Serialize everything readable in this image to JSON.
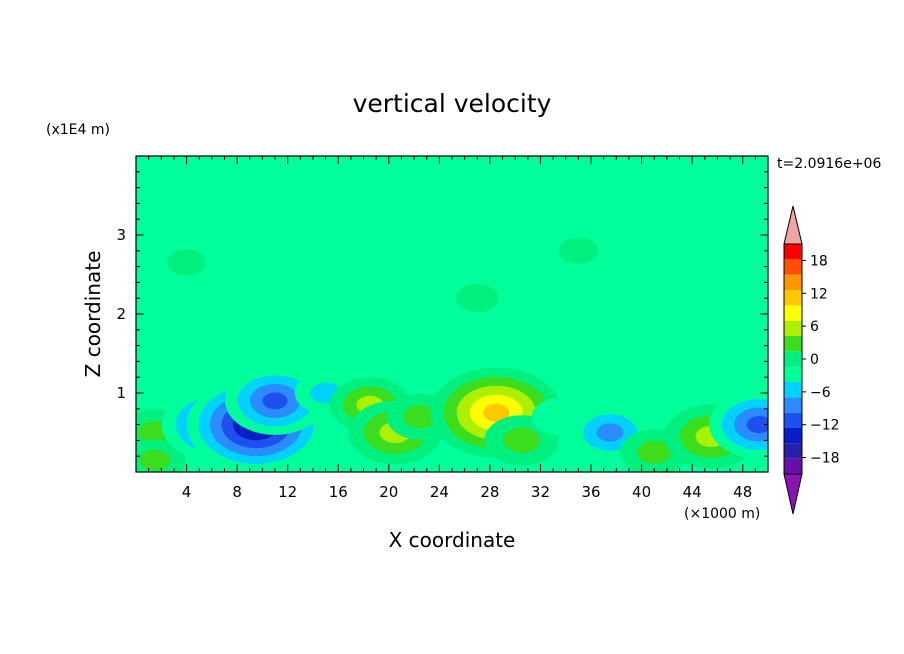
{
  "chart_data": {
    "type": "heatmap",
    "title": "vertical velocity",
    "xlabel": "X coordinate",
    "ylabel": "Z coordinate",
    "x_unit_label": "(×1000 m)",
    "y_unit_label": "(x1E4 m)",
    "time_label": "t=2.0916e+06",
    "xlim": [
      0,
      50
    ],
    "ylim": [
      0,
      4
    ],
    "x_ticks": [
      4,
      8,
      12,
      16,
      20,
      24,
      28,
      32,
      36,
      40,
      44,
      48
    ],
    "y_ticks": [
      1,
      2,
      3
    ],
    "colorbar": {
      "tick_values": [
        -18,
        -12,
        -6,
        0,
        6,
        12,
        18
      ],
      "tick_labels": [
        "−18",
        "−12",
        "−6",
        "0",
        "6",
        "12",
        "18"
      ],
      "levels": [
        -21,
        -18,
        -15,
        -12,
        -9,
        -6,
        -3,
        0,
        3,
        6,
        9,
        12,
        15,
        18,
        21
      ],
      "colors": [
        "#6a0dad",
        "#2a1fa8",
        "#0a1ec8",
        "#1e50f0",
        "#2a8cff",
        "#00d2ff",
        "#00ff9a",
        "#00f080",
        "#3cdc1e",
        "#aaf000",
        "#ffff00",
        "#ffc800",
        "#ff9600",
        "#ff5000",
        "#ff0000"
      ],
      "under_color": "#8c14b4",
      "over_color": "#f4a3a3"
    },
    "features": [
      {
        "x": 1.5,
        "z": 0.5,
        "value": 5
      },
      {
        "x": 1.5,
        "z": 0.15,
        "value": 4
      },
      {
        "x": 6.5,
        "z": 0.6,
        "value": -12
      },
      {
        "x": 9.5,
        "z": 0.6,
        "value": -16
      },
      {
        "x": 11,
        "z": 0.9,
        "value": -10
      },
      {
        "x": 15,
        "z": 1.0,
        "value": -4
      },
      {
        "x": 18.5,
        "z": 0.85,
        "value": 7
      },
      {
        "x": 20.5,
        "z": 0.5,
        "value": 9
      },
      {
        "x": 22.5,
        "z": 0.7,
        "value": 5
      },
      {
        "x": 28.5,
        "z": 0.75,
        "value": 15
      },
      {
        "x": 30.5,
        "z": 0.4,
        "value": 6
      },
      {
        "x": 33.5,
        "z": 0.7,
        "value": -3
      },
      {
        "x": 37.5,
        "z": 0.5,
        "value": -7
      },
      {
        "x": 41,
        "z": 0.25,
        "value": 5
      },
      {
        "x": 45.5,
        "z": 0.45,
        "value": 9
      },
      {
        "x": 49.3,
        "z": 0.6,
        "value": -10
      },
      {
        "x": 27,
        "z": 2.2,
        "value": 1
      },
      {
        "x": 35,
        "z": 2.8,
        "value": 0.5
      },
      {
        "x": 4,
        "z": 2.65,
        "value": 0.5
      }
    ]
  }
}
